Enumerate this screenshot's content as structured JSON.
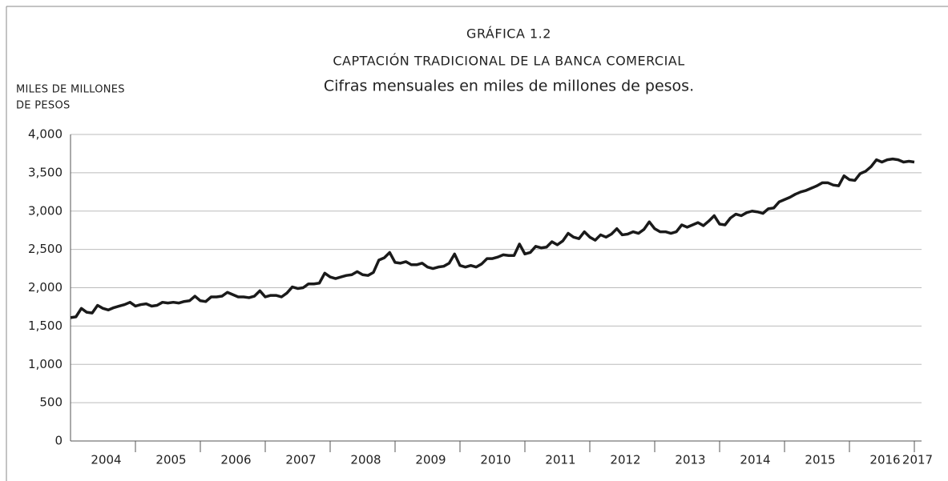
{
  "chart_data": {
    "type": "line",
    "title": "GRÁFICA 1.2",
    "subtitle": "CAPTACIÓN TRADICIONAL DE LA BANCA COMERCIAL",
    "caption": "Cifras mensuales en miles de millones de pesos.",
    "y_label": [
      "MILES DE MILLONES",
      "DE PESOS"
    ],
    "categories": [
      null,
      null,
      null,
      null,
      null,
      null,
      "2004",
      null,
      null,
      null,
      null,
      null,
      null,
      null,
      null,
      null,
      null,
      null,
      "2005",
      null,
      null,
      null,
      null,
      null,
      null,
      null,
      null,
      null,
      null,
      null,
      "2006",
      null,
      null,
      null,
      null,
      null,
      null,
      null,
      null,
      null,
      null,
      null,
      "2007",
      null,
      null,
      null,
      null,
      null,
      null,
      null,
      null,
      null,
      null,
      null,
      "2008",
      null,
      null,
      null,
      null,
      null,
      null,
      null,
      null,
      null,
      null,
      null,
      "2009",
      null,
      null,
      null,
      null,
      null,
      null,
      null,
      null,
      null,
      null,
      null,
      "2010",
      null,
      null,
      null,
      null,
      null,
      null,
      null,
      null,
      null,
      null,
      null,
      "2011",
      null,
      null,
      null,
      null,
      null,
      null,
      null,
      null,
      null,
      null,
      null,
      "2012",
      null,
      null,
      null,
      null,
      null,
      null,
      null,
      null,
      null,
      null,
      null,
      "2013",
      null,
      null,
      null,
      null,
      null,
      null,
      null,
      null,
      null,
      null,
      null,
      "2014",
      null,
      null,
      null,
      null,
      null,
      null,
      null,
      null,
      null,
      null,
      null,
      "2015",
      null,
      null,
      null,
      null,
      null,
      null,
      null,
      null,
      null,
      null,
      null,
      "2016",
      null,
      null,
      null,
      null,
      null,
      "2017"
    ],
    "series": [
      {
        "name": "Captación tradicional",
        "color": "#1a1a1a",
        "values": [
          1610,
          1620,
          1730,
          1680,
          1670,
          1770,
          1730,
          1710,
          1740,
          1760,
          1780,
          1810,
          1760,
          1780,
          1790,
          1760,
          1770,
          1810,
          1800,
          1810,
          1800,
          1820,
          1830,
          1890,
          1830,
          1820,
          1880,
          1880,
          1890,
          1940,
          1910,
          1880,
          1880,
          1870,
          1890,
          1960,
          1880,
          1900,
          1900,
          1880,
          1930,
          2010,
          1990,
          2000,
          2050,
          2050,
          2060,
          2190,
          2140,
          2120,
          2140,
          2160,
          2170,
          2210,
          2170,
          2160,
          2200,
          2360,
          2390,
          2460,
          2330,
          2320,
          2340,
          2300,
          2300,
          2320,
          2270,
          2250,
          2270,
          2280,
          2320,
          2440,
          2290,
          2270,
          2290,
          2270,
          2310,
          2380,
          2380,
          2400,
          2430,
          2420,
          2420,
          2570,
          2440,
          2460,
          2540,
          2520,
          2530,
          2600,
          2560,
          2610,
          2710,
          2660,
          2640,
          2730,
          2660,
          2620,
          2690,
          2660,
          2700,
          2770,
          2690,
          2700,
          2730,
          2710,
          2760,
          2860,
          2770,
          2730,
          2730,
          2710,
          2730,
          2820,
          2790,
          2820,
          2850,
          2810,
          2870,
          2940,
          2830,
          2820,
          2910,
          2960,
          2940,
          2980,
          3000,
          2990,
          2970,
          3030,
          3040,
          3120,
          3150,
          3180,
          3220,
          3250,
          3270,
          3300,
          3330,
          3370,
          3370,
          3340,
          3330,
          3460,
          3410,
          3400,
          3490,
          3520,
          3580,
          3670,
          3640,
          3670,
          3680,
          3670,
          3640,
          3650,
          3640
        ]
      }
    ],
    "ylim": [
      0,
      4000
    ],
    "yticks": [
      0,
      500,
      {
        "value": 1000,
        "label": "1,000"
      },
      {
        "value": 1500,
        "label": "1,500"
      },
      {
        "value": 2000,
        "label": "2,000"
      },
      {
        "value": 2500,
        "label": "2,500"
      },
      {
        "value": 3000,
        "label": "3,000"
      },
      {
        "value": 3500,
        "label": "3,500"
      },
      {
        "value": 4000,
        "label": "4,000"
      }
    ],
    "grid": true
  }
}
